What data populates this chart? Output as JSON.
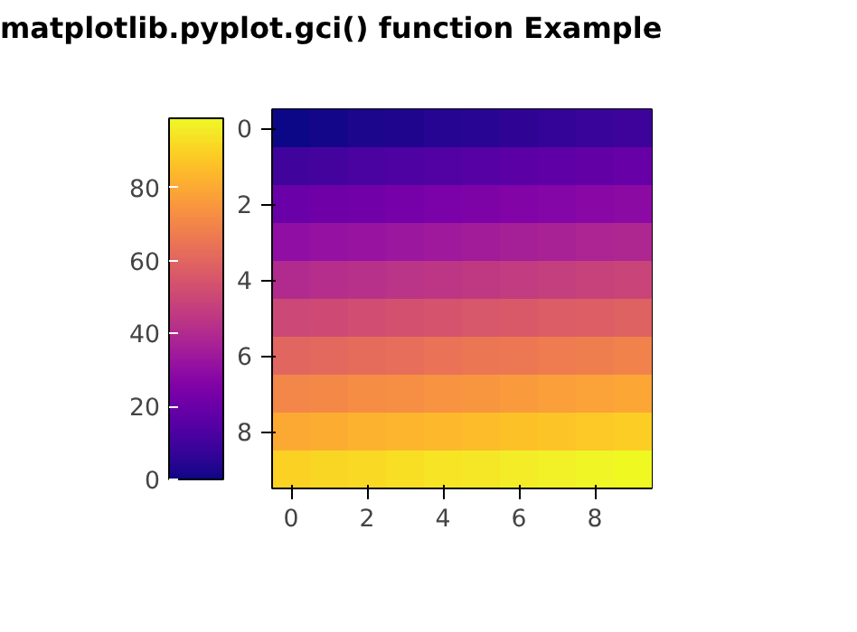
{
  "chart_data": {
    "type": "heatmap",
    "title": "matplotlib.pyplot.gci() function Example",
    "categories": [
      "0",
      null,
      "2",
      null,
      "4",
      null,
      "6",
      null,
      "8",
      null
    ],
    "y_categories": [
      "0",
      null,
      "2",
      null,
      "4",
      null,
      "6",
      null,
      "8",
      null
    ],
    "cells": [
      [
        0,
        1,
        2,
        3,
        4,
        5,
        6,
        7,
        8,
        9
      ],
      [
        10,
        11,
        12,
        13,
        14,
        15,
        16,
        17,
        18,
        19
      ],
      [
        20,
        21,
        22,
        23,
        24,
        25,
        26,
        27,
        28,
        29
      ],
      [
        30,
        31,
        32,
        33,
        34,
        35,
        36,
        37,
        38,
        39
      ],
      [
        40,
        41,
        42,
        43,
        44,
        45,
        46,
        47,
        48,
        49
      ],
      [
        50,
        51,
        52,
        53,
        54,
        55,
        56,
        57,
        58,
        59
      ],
      [
        60,
        61,
        62,
        63,
        64,
        65,
        66,
        67,
        68,
        69
      ],
      [
        70,
        71,
        72,
        73,
        74,
        75,
        76,
        77,
        78,
        79
      ],
      [
        80,
        81,
        82,
        83,
        84,
        85,
        86,
        87,
        88,
        89
      ],
      [
        90,
        91,
        92,
        93,
        94,
        95,
        96,
        97,
        98,
        99
      ]
    ],
    "clim": [
      0,
      99
    ],
    "cticks": [
      0,
      20,
      40,
      60,
      80
    ]
  }
}
